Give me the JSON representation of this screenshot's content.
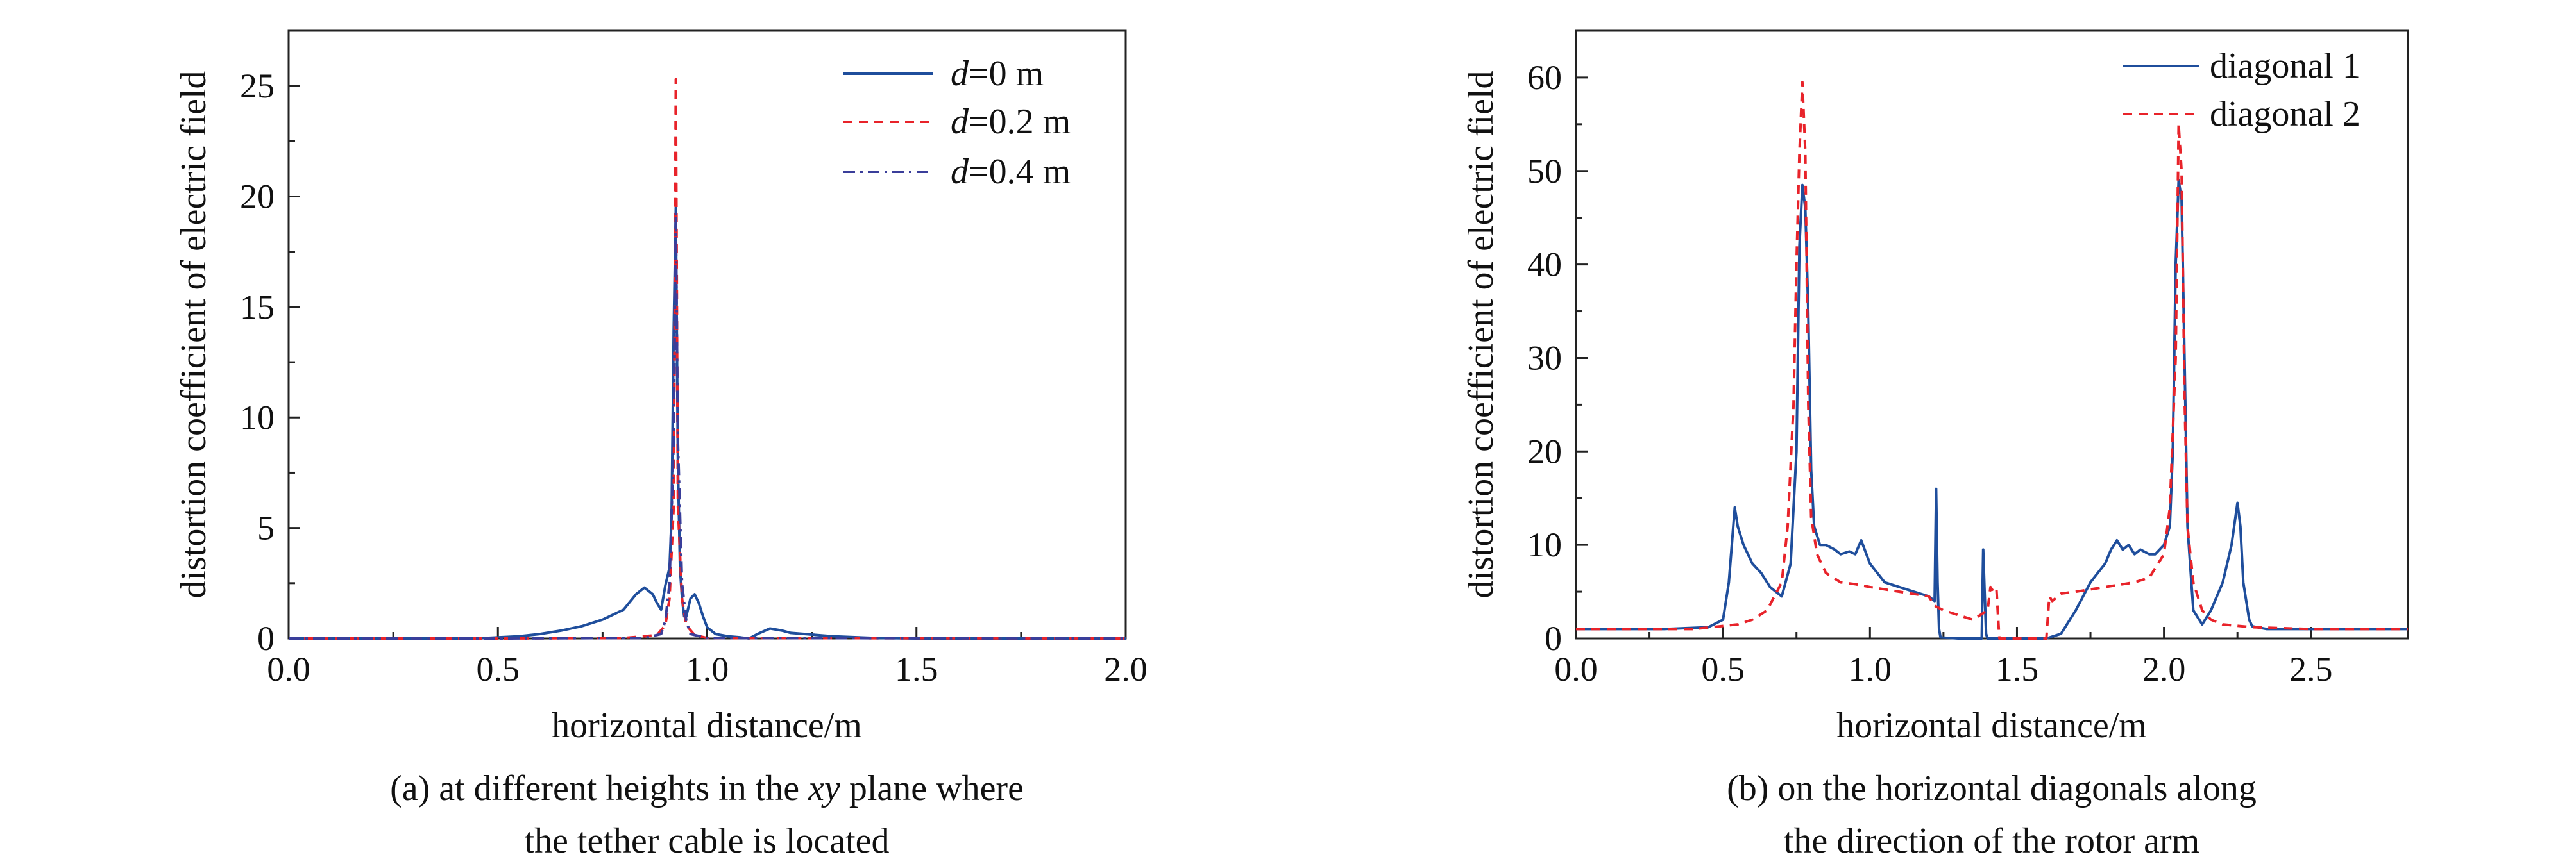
{
  "chart_data": [
    {
      "type": "line",
      "xlabel": "horizontal distance/m",
      "ylabel": "distortion coefficient of electric field",
      "xlim": [
        0,
        2.0
      ],
      "ylim": [
        0,
        27.5
      ],
      "x_ticks": [
        0.0,
        0.5,
        1.0,
        1.5,
        2.0
      ],
      "x_tick_labels": [
        "0.0",
        "0.5",
        "1.0",
        "1.5",
        "2.0"
      ],
      "y_ticks": [
        0,
        5,
        10,
        15,
        20,
        25
      ],
      "y_tick_labels": [
        "0",
        "5",
        "10",
        "15",
        "20",
        "25"
      ],
      "legend_position": "top-right",
      "caption_line1_pre": "(a) at different heights in the ",
      "caption_line1_em": "xy",
      "caption_line1_post": " plane where",
      "caption_line2": "the tether cable is located",
      "series": [
        {
          "legend_var": "d",
          "legend_rest": "=0 m",
          "color": "#1f4e9c",
          "dash": "solid",
          "x": [
            0.0,
            0.45,
            0.5,
            0.55,
            0.6,
            0.65,
            0.7,
            0.75,
            0.8,
            0.83,
            0.85,
            0.87,
            0.88,
            0.89,
            0.9,
            0.91,
            0.915,
            0.92,
            0.925,
            0.93,
            0.935,
            0.94,
            0.945,
            0.95,
            0.96,
            0.97,
            0.98,
            0.99,
            1.0,
            1.02,
            1.05,
            1.08,
            1.1,
            1.12,
            1.15,
            1.18,
            1.2,
            1.3,
            1.4,
            1.5,
            2.0
          ],
          "y": [
            0,
            0,
            0.05,
            0.1,
            0.2,
            0.35,
            0.55,
            0.85,
            1.3,
            2.0,
            2.3,
            2.0,
            1.6,
            1.3,
            2.4,
            3.2,
            5.5,
            14.0,
            19.5,
            8.0,
            3.2,
            1.8,
            1.0,
            1.0,
            1.8,
            2.0,
            1.6,
            1.0,
            0.5,
            0.2,
            0.1,
            0.05,
            0.0,
            0.2,
            0.45,
            0.35,
            0.25,
            0.1,
            0.02,
            0,
            0
          ]
        },
        {
          "legend_var": "d",
          "legend_rest": "=0.2 m",
          "color": "#e8232a",
          "dash": "14,10",
          "x": [
            0.0,
            0.5,
            0.8,
            0.88,
            0.9,
            0.91,
            0.92,
            0.925,
            0.93,
            0.94,
            0.95,
            0.97,
            1.0,
            2.0
          ],
          "y": [
            0,
            0,
            0.02,
            0.15,
            0.6,
            1.8,
            6.0,
            25.3,
            6.0,
            1.8,
            0.6,
            0.15,
            0.02,
            0
          ]
        },
        {
          "legend_var": "d",
          "legend_rest": "=0.4 m",
          "color": "#3a3e9a",
          "dash": "18,8,4,8",
          "x": [
            0.0,
            0.5,
            0.85,
            0.89,
            0.9,
            0.91,
            0.92,
            0.925,
            0.93,
            0.94,
            0.95,
            0.96,
            1.0,
            2.0
          ],
          "y": [
            0,
            0,
            0.02,
            0.2,
            0.8,
            2.5,
            9.0,
            19.3,
            9.0,
            2.5,
            0.8,
            0.2,
            0.02,
            0
          ]
        }
      ]
    },
    {
      "type": "line",
      "xlabel": "horizontal distance/m",
      "ylabel": "distortion coefficient of electric field",
      "xlim": [
        0,
        2.83
      ],
      "ylim": [
        0,
        65
      ],
      "x_ticks": [
        0.0,
        0.5,
        1.0,
        1.5,
        2.0,
        2.5
      ],
      "x_tick_labels": [
        "0.0",
        "0.5",
        "1.0",
        "1.5",
        "2.0",
        "2.5"
      ],
      "y_ticks": [
        0,
        10,
        20,
        30,
        40,
        50,
        60
      ],
      "y_tick_labels": [
        "0",
        "10",
        "20",
        "30",
        "40",
        "50",
        "60"
      ],
      "legend_position": "top-right",
      "caption_line1": "(b) on the horizontal diagonals along",
      "caption_line2": "the direction of the rotor arm",
      "series": [
        {
          "name": "diagonal 1",
          "color": "#1f4e9c",
          "dash": "solid",
          "x": [
            0.0,
            0.3,
            0.45,
            0.5,
            0.52,
            0.54,
            0.55,
            0.57,
            0.6,
            0.63,
            0.66,
            0.7,
            0.73,
            0.75,
            0.76,
            0.77,
            0.78,
            0.79,
            0.8,
            0.81,
            0.83,
            0.85,
            0.88,
            0.9,
            0.93,
            0.95,
            0.97,
            1.0,
            1.05,
            1.1,
            1.15,
            1.2,
            1.22,
            1.225,
            1.23,
            1.235,
            1.24,
            1.3,
            1.38,
            1.385,
            1.39,
            1.395,
            1.4,
            1.45,
            1.6,
            1.65,
            1.7,
            1.75,
            1.8,
            1.82,
            1.84,
            1.86,
            1.88,
            1.9,
            1.92,
            1.95,
            1.97,
            2.0,
            2.02,
            2.03,
            2.04,
            2.05,
            2.06,
            2.07,
            2.08,
            2.1,
            2.13,
            2.16,
            2.2,
            2.23,
            2.25,
            2.26,
            2.27,
            2.29,
            2.3,
            2.35,
            2.5,
            2.83
          ],
          "y": [
            1.0,
            1.0,
            1.2,
            2.0,
            6.0,
            14.0,
            12.0,
            10.0,
            8.0,
            7.0,
            5.5,
            4.5,
            8.0,
            20.0,
            42.0,
            48.5,
            46.0,
            35.0,
            18.0,
            12.0,
            10.0,
            10.0,
            9.5,
            9.0,
            9.3,
            9.0,
            10.5,
            8.0,
            6.0,
            5.5,
            5.0,
            4.5,
            4.0,
            16.0,
            6.0,
            1.0,
            0.1,
            0.0,
            0.0,
            9.5,
            5.0,
            0.5,
            0.0,
            0.0,
            0.0,
            0.5,
            3.0,
            6.0,
            8.0,
            9.5,
            10.5,
            9.5,
            10.0,
            9.0,
            9.5,
            9.0,
            9.0,
            10.0,
            12.0,
            20.0,
            40.0,
            49.0,
            47.0,
            30.0,
            12.0,
            3.0,
            1.5,
            3.0,
            6.0,
            10.0,
            14.5,
            12.0,
            6.0,
            2.0,
            1.3,
            1.0,
            1.0,
            1.0
          ]
        },
        {
          "name": "diagonal 2",
          "color": "#e8232a",
          "dash": "14,10",
          "x": [
            0.0,
            0.4,
            0.55,
            0.6,
            0.65,
            0.7,
            0.72,
            0.74,
            0.75,
            0.76,
            0.77,
            0.78,
            0.79,
            0.8,
            0.82,
            0.85,
            0.9,
            0.95,
            1.0,
            1.1,
            1.2,
            1.22,
            1.25,
            1.3,
            1.35,
            1.4,
            1.41,
            1.42,
            1.43,
            1.44,
            1.45,
            1.55,
            1.6,
            1.61,
            1.62,
            1.65,
            1.7,
            1.8,
            1.9,
            1.95,
            2.0,
            2.02,
            2.04,
            2.05,
            2.06,
            2.07,
            2.08,
            2.1,
            2.13,
            2.16,
            2.2,
            2.3,
            2.5,
            2.83
          ],
          "y": [
            1.0,
            1.0,
            1.5,
            2.0,
            3.0,
            6.0,
            12.0,
            25.0,
            40.0,
            52.0,
            59.5,
            52.0,
            25.0,
            13.0,
            9.0,
            7.0,
            6.0,
            5.8,
            5.5,
            5.0,
            4.5,
            3.5,
            3.0,
            2.5,
            2.0,
            3.0,
            5.5,
            5.0,
            5.3,
            0.0,
            0.0,
            0.0,
            0.0,
            4.5,
            4.0,
            4.8,
            5.0,
            5.5,
            6.0,
            6.5,
            9.0,
            14.0,
            30.0,
            55.0,
            50.0,
            26.0,
            12.0,
            6.0,
            3.0,
            2.0,
            1.5,
            1.2,
            1.0,
            1.0
          ]
        }
      ]
    }
  ]
}
